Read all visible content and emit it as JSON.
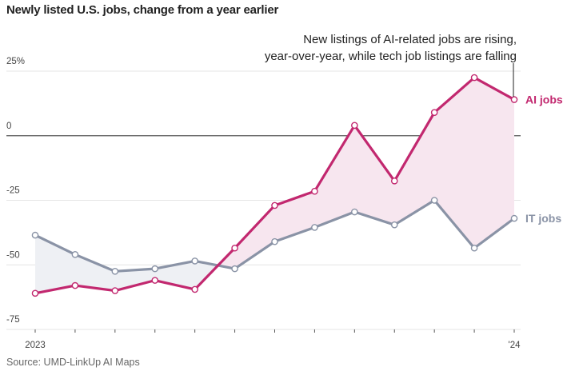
{
  "title": "Newly listed U.S. jobs, change from a year earlier",
  "source": "Source: UMD-LinkUp AI Maps",
  "annotation": [
    "New listings of AI-related jobs are rising,",
    "year-over-year, while tech job listings are falling"
  ],
  "colors": {
    "ai": "#c2286f",
    "it": "#8a93a6",
    "fill_ai": "#f7e6ef",
    "fill_it": "#eef0f4",
    "grid": "#e6e6e6",
    "zero": "#555555"
  },
  "chart_data": {
    "type": "line",
    "title": "Newly listed U.S. jobs, change from a year earlier",
    "xlabel": "",
    "ylabel": "",
    "ylim": [
      -75,
      25
    ],
    "yticks": [
      25,
      0,
      -25,
      -50,
      -75
    ],
    "ytick_labels": [
      "25%",
      "0",
      "-25",
      "-50",
      "-75"
    ],
    "x_tick_labels": [
      "2023",
      "'24"
    ],
    "x": [
      "Jan 2023",
      "Feb 2023",
      "Mar 2023",
      "Apr 2023",
      "May 2023",
      "Jun 2023",
      "Jul 2023",
      "Aug 2023",
      "Sep 2023",
      "Oct 2023",
      "Nov 2023",
      "Dec 2023",
      "Jan 2024"
    ],
    "series": [
      {
        "name": "AI jobs",
        "values": [
          -61,
          -58,
          -60,
          -56,
          -59.5,
          -43.5,
          -27,
          -21.5,
          4,
          -17.5,
          9,
          22.5,
          14
        ]
      },
      {
        "name": "IT jobs",
        "values": [
          -38.5,
          -46,
          -52.5,
          -51.5,
          -48.5,
          -51.5,
          -41,
          -35.5,
          -29.5,
          -34.5,
          -25,
          -43.5,
          -32
        ]
      }
    ],
    "grid": true,
    "legend": "direct labels at right"
  }
}
